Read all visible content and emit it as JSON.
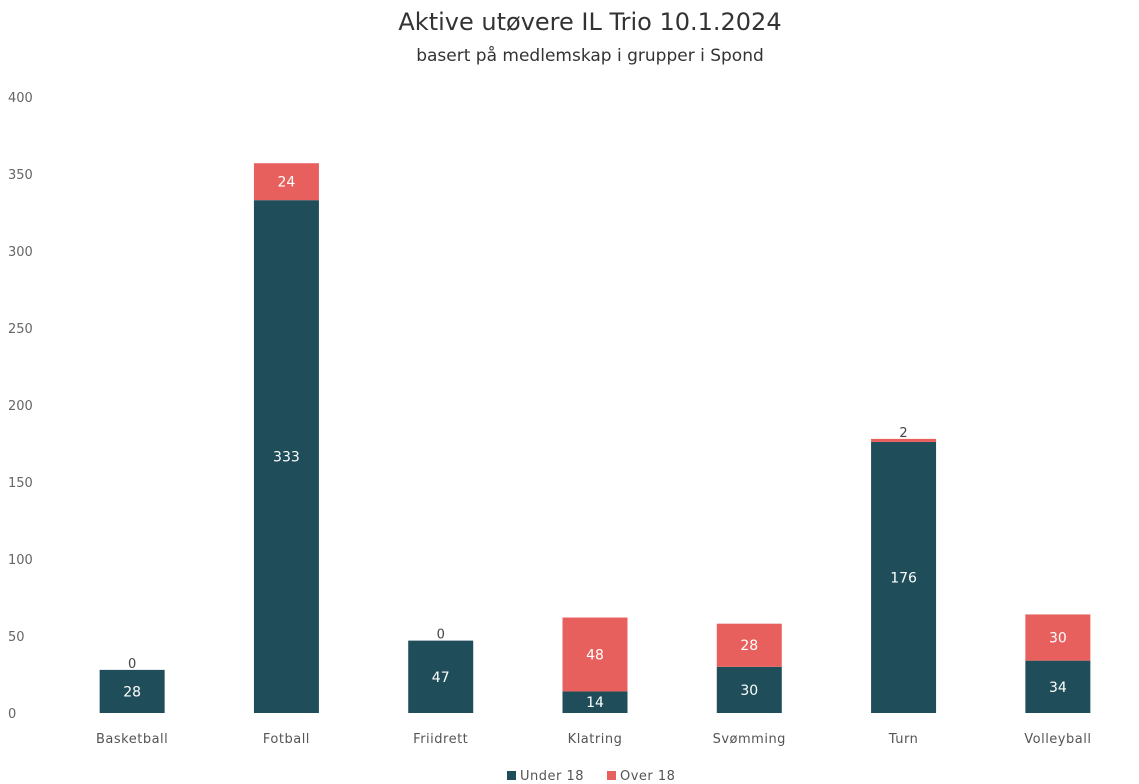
{
  "chart_data": {
    "type": "bar",
    "stacked": true,
    "title": "Aktive utøvere IL Trio 10.1.2024",
    "subtitle": "basert på medlemskap i grupper i Spond",
    "categories": [
      "Basketball",
      "Fotball",
      "Friidrett",
      "Klatring",
      "Svømming",
      "Turn",
      "Volleyball"
    ],
    "series": [
      {
        "name": "Under 18",
        "color": "#1f4e5a",
        "values": [
          28,
          333,
          47,
          14,
          30,
          176,
          34
        ]
      },
      {
        "name": "Over 18",
        "color": "#e8605d",
        "values": [
          0,
          24,
          0,
          48,
          28,
          2,
          30
        ]
      }
    ],
    "ylim": [
      0,
      400
    ],
    "yticks": [
      0,
      50,
      100,
      150,
      200,
      250,
      300,
      350,
      400
    ],
    "grid": false,
    "legend": "bottom-center"
  }
}
